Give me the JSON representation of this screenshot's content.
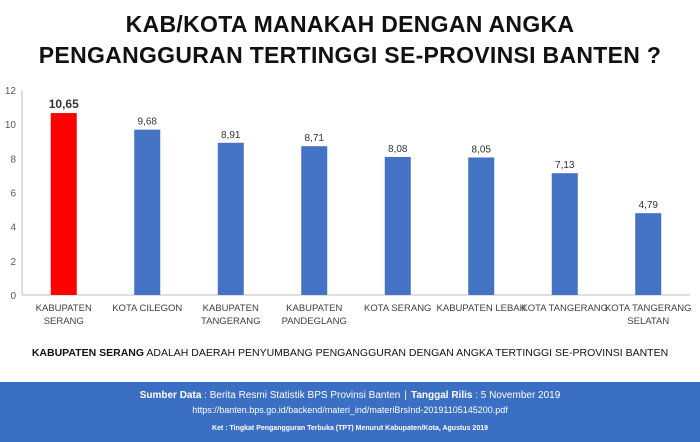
{
  "title_line1": "KAB/KOTA MANAKAH DENGAN ANGKA",
  "title_line2": "PENGANGGURAN TERTINGGI SE-PROVINSI BANTEN ?",
  "chart_data": {
    "type": "bar",
    "categories": [
      [
        "KABUPATEN",
        "SERANG"
      ],
      [
        "KOTA CILEGON"
      ],
      [
        "KABUPATEN",
        "TANGERANG"
      ],
      [
        "KABUPATEN",
        "PANDEGLANG"
      ],
      [
        "KOTA SERANG"
      ],
      [
        "KABUPATEN LEBAK"
      ],
      [
        "KOTA TANGERANG"
      ],
      [
        "KOTA TANGERANG",
        "SELATAN"
      ]
    ],
    "values": [
      10.65,
      9.68,
      8.91,
      8.71,
      8.08,
      8.05,
      7.13,
      4.79
    ],
    "value_labels": [
      "10,65",
      "9,68",
      "8,91",
      "8,71",
      "8,08",
      "8,05",
      "7,13",
      "4,79"
    ],
    "highlight_index": 0,
    "highlight_color": "#ff0000",
    "bar_color": "#4472c4",
    "ylim": [
      0,
      12
    ],
    "yticks": [
      0,
      2,
      4,
      6,
      8,
      10,
      12
    ],
    "grid": false
  },
  "note": {
    "bold": "KABUPATEN SERANG",
    "rest": " ADALAH DAERAH PENYUMBANG PENGANGGURAN DENGAN ANGKA TERTINGGI SE-PROVINSI BANTEN"
  },
  "footer": {
    "source_label": "Sumber Data",
    "source_value": " : Berita Resmi Statistik BPS Provinsi Banten",
    "separator": "|",
    "release_label": "Tanggal Rilis",
    "release_value": " : 5 November 2019",
    "url": "https://banten.bps.go.id/backend/materi_ind/materiBrsInd-20191105145200.pdf",
    "footnote": "Ket : Tingkat Pengangguran Terbuka (TPT) Menurut Kabupaten/Kota, Agustus 2019"
  },
  "colors": {
    "footer_bg": "#3b6fc4",
    "axis": "#bfbfbf",
    "tick_text": "#595959"
  }
}
